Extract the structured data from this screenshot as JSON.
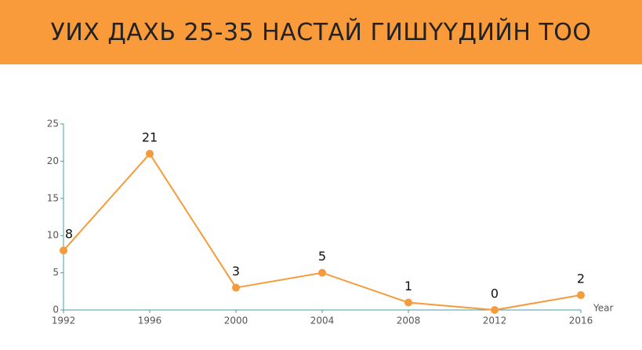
{
  "chart_data": {
    "type": "line",
    "title": "УИХ ДАХЬ 25-35 НАСТАЙ ГИШҮҮДИЙН ТОО",
    "x_label": "Year",
    "x": [
      1992,
      1996,
      2000,
      2004,
      2008,
      2012,
      2016
    ],
    "series": [
      {
        "color": "#f59b3c",
        "values": [
          8,
          21,
          3,
          5,
          1,
          0,
          2
        ]
      }
    ],
    "xlim": [
      1992,
      2016
    ],
    "xticks": [
      1992,
      1996,
      2000,
      2004,
      2008,
      2012,
      2016
    ],
    "ylim": [
      0,
      25
    ],
    "yticks": [
      0,
      5,
      10,
      15,
      20,
      25
    ],
    "axis_color": "#4a9da8",
    "data_labels": true
  }
}
